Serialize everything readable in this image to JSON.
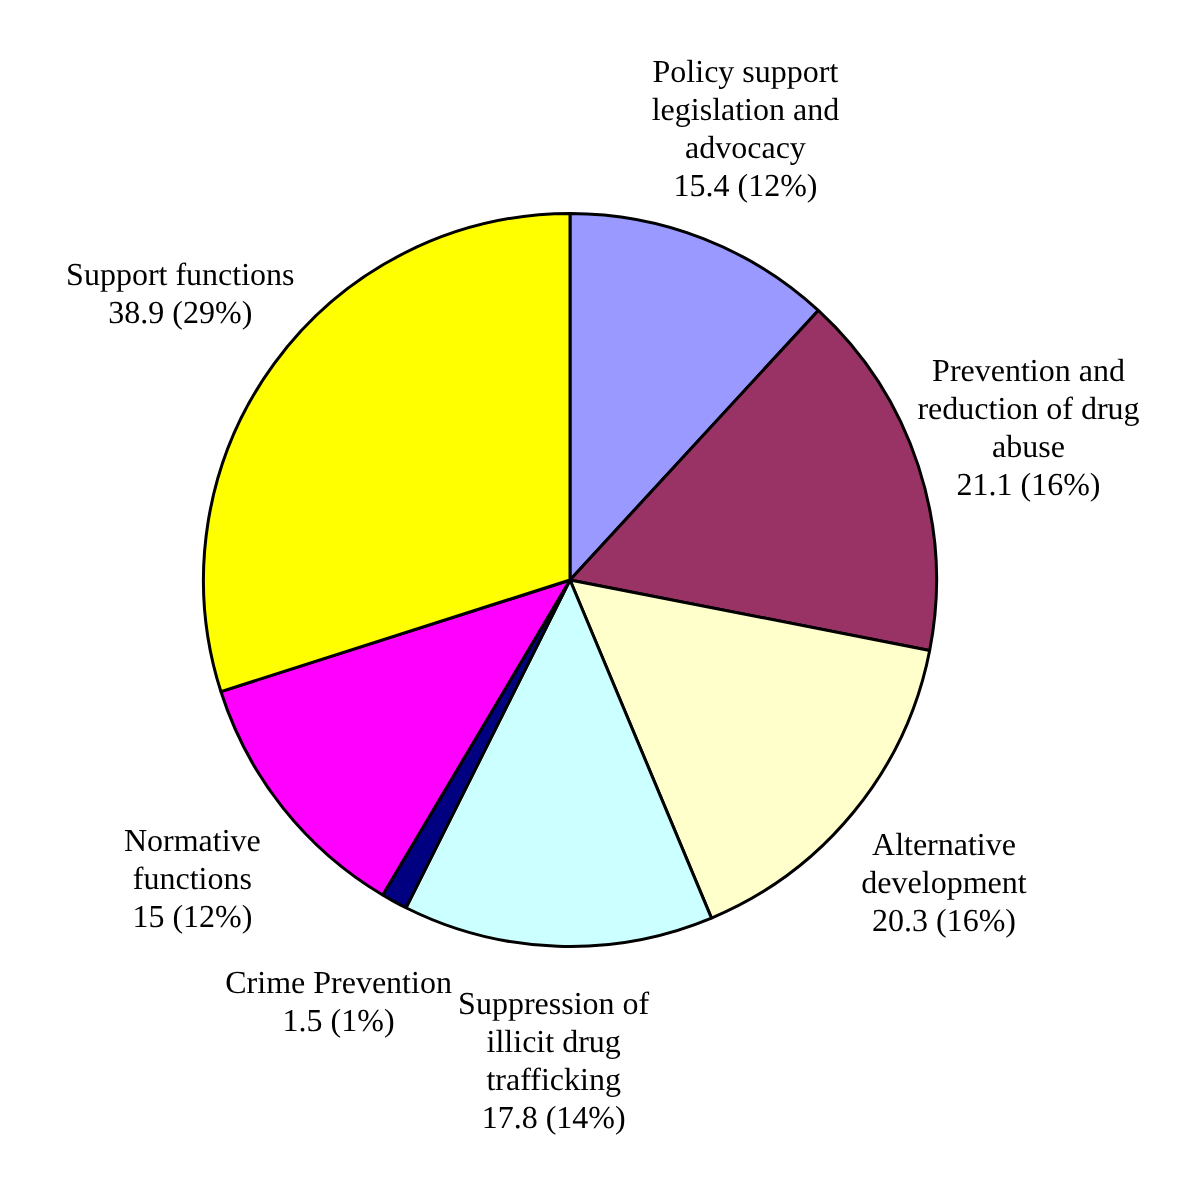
{
  "chart_data": {
    "type": "pie",
    "categories": [
      "Policy support legislation and advocacy",
      "Prevention and reduction of drug abuse",
      "Alternative development",
      "Suppression of illicit drug trafficking",
      "Crime Prevention",
      "Normative functions",
      "Support functions"
    ],
    "values": [
      15.4,
      21.1,
      20.3,
      17.8,
      1.5,
      15,
      38.9
    ],
    "value_labels": [
      "15.4 (12%)",
      "21.1 (16%)",
      "20.3 (16%)",
      "17.8 (14%)",
      "1.5 (1%)",
      "15 (12%)",
      "38.9 (29%)"
    ],
    "colors": [
      "#9999ff",
      "#993366",
      "#ffffcc",
      "#ccffff",
      "#000080",
      "#ff00ff",
      "#ffff00"
    ],
    "legend": false
  }
}
